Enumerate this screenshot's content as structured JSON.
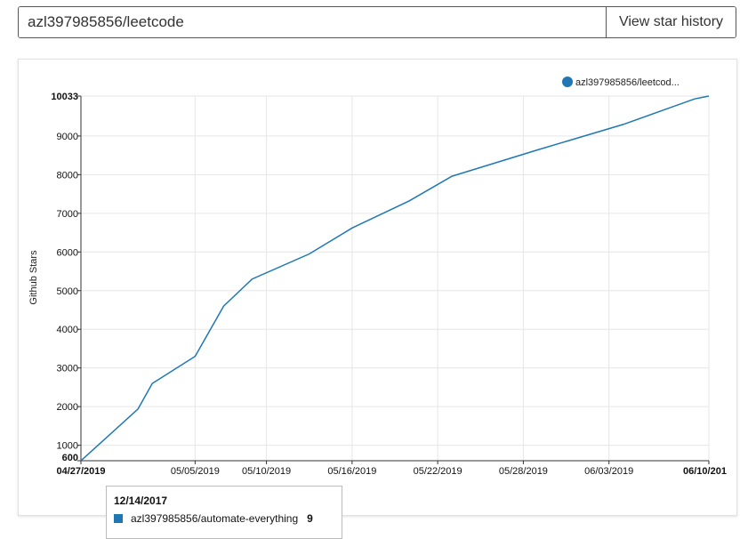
{
  "search": {
    "value": "azl397985856/leetcode",
    "button_label": "View star history"
  },
  "tooltip": {
    "date": "12/14/2017",
    "series": "azl397985856/automate-everything",
    "value": "9",
    "color": "#1f77b4"
  },
  "chart_data": {
    "type": "line",
    "title": "",
    "xlabel": "",
    "ylabel": "Github Stars",
    "legend": {
      "position": "top-right",
      "entries": [
        "azl397985856/leetcod..."
      ]
    },
    "grid": true,
    "color": "#1f77b4",
    "x_ticks": [
      "04/27/2019",
      "05/05/2019",
      "05/10/2019",
      "05/16/2019",
      "05/22/2019",
      "05/28/2019",
      "06/03/2019",
      "06/10/201"
    ],
    "x_bold_ticks": [
      "04/27/2019",
      "06/10/201"
    ],
    "y_ticks": [
      "600",
      "1000",
      "2000",
      "3000",
      "4000",
      "5000",
      "6000",
      "7000",
      "8000",
      "9000",
      "10033"
    ],
    "y_bold_ticks": [
      "600",
      "10033"
    ],
    "xlim": [
      "2019-04-27",
      "2019-06-10"
    ],
    "ylim": [
      600,
      10033
    ],
    "series": [
      {
        "name": "azl397985856/leetcod...",
        "x": [
          "2019-04-27",
          "2019-05-01",
          "2019-05-02",
          "2019-05-05",
          "2019-05-07",
          "2019-05-09",
          "2019-05-13",
          "2019-05-16",
          "2019-05-20",
          "2019-05-23",
          "2019-05-29",
          "2019-06-04",
          "2019-06-09",
          "2019-06-10"
        ],
        "y": [
          600,
          1940,
          2600,
          3300,
          4600,
          5300,
          5950,
          6620,
          7320,
          7960,
          8640,
          9300,
          9960,
          10033
        ]
      }
    ]
  }
}
